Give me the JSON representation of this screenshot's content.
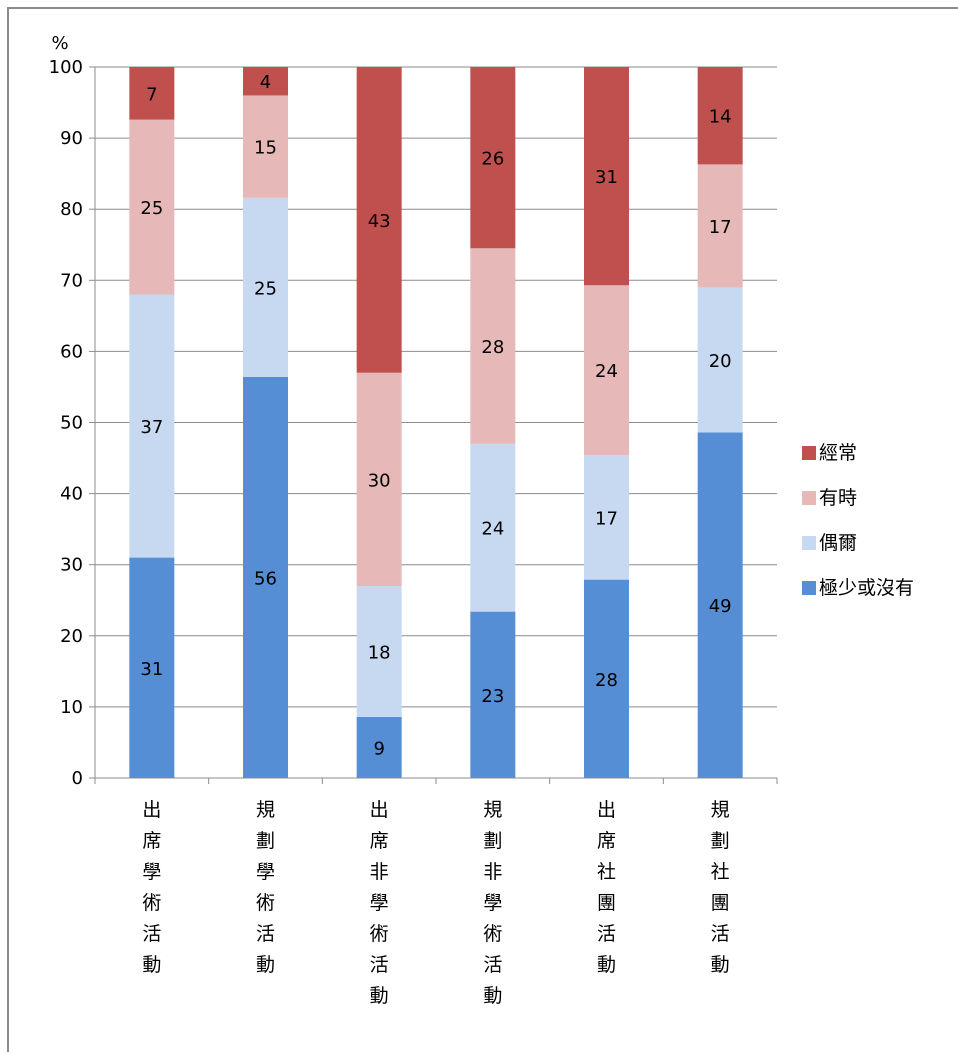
{
  "chart_data": {
    "type": "bar",
    "stacked": true,
    "title": "",
    "ylabel": "%",
    "xlabel": "",
    "ylim": [
      0,
      100
    ],
    "y_ticks": [
      0,
      10,
      20,
      30,
      40,
      50,
      60,
      70,
      80,
      90,
      100
    ],
    "grid": true,
    "legend_position": "right",
    "categories": [
      "出席學術活動",
      "規劃學術活動",
      "出席非學術活動",
      "規劃非學術活動",
      "出席社團活動",
      "規劃社團活動"
    ],
    "series": [
      {
        "name": "極少或沒有",
        "color": "#558ed5",
        "values": [
          31,
          56,
          9,
          23,
          28,
          49
        ]
      },
      {
        "name": "偶爾",
        "color": "#c6d9f1",
        "values": [
          37,
          25,
          18,
          24,
          17,
          20
        ]
      },
      {
        "name": "有時",
        "color": "#e6b9b8",
        "values": [
          25,
          15,
          30,
          28,
          24,
          17
        ]
      },
      {
        "name": "經常",
        "color": "#c0504d",
        "values": [
          7,
          4,
          43,
          26,
          31,
          14
        ]
      }
    ],
    "legend_order": [
      "經常",
      "有時",
      "偶爾",
      "極少或沒有"
    ],
    "segment_extents": [
      [
        [
          0,
          31
        ],
        [
          31,
          68
        ],
        [
          68,
          92.6
        ],
        [
          92.6,
          100
        ]
      ],
      [
        [
          0,
          56.4
        ],
        [
          56.4,
          81.6
        ],
        [
          81.6,
          96
        ],
        [
          96,
          100
        ]
      ],
      [
        [
          0,
          8.6
        ],
        [
          8.6,
          27
        ],
        [
          27,
          57
        ],
        [
          57,
          100
        ]
      ],
      [
        [
          0,
          23.4
        ],
        [
          23.4,
          47
        ],
        [
          47,
          74.5
        ],
        [
          74.5,
          100
        ]
      ],
      [
        [
          0,
          27.9
        ],
        [
          27.9,
          45.4
        ],
        [
          45.4,
          69.3
        ],
        [
          69.3,
          100
        ]
      ],
      [
        [
          0,
          48.6
        ],
        [
          48.6,
          69
        ],
        [
          69,
          86.3
        ],
        [
          86.3,
          100
        ]
      ]
    ]
  }
}
